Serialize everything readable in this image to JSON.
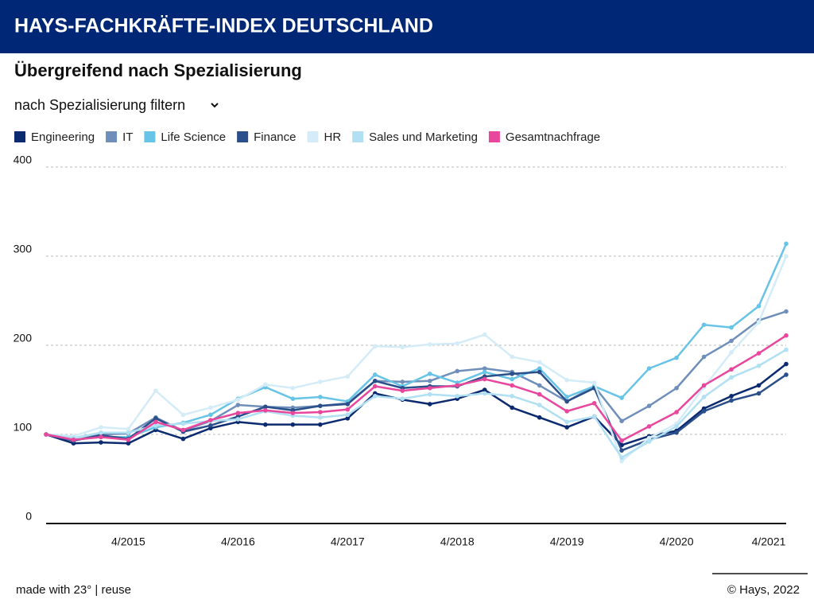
{
  "header": {
    "title": "HAYS-FACHKRÄFTE-INDEX DEUTSCHLAND"
  },
  "subtitle": "Übergreifend nach Spezialisierung",
  "filter_label": "nach Spezialisierung filtern",
  "footer": {
    "left": "made with 23° | reuse",
    "right": "© Hays, 2022"
  },
  "chart_data": {
    "type": "line",
    "categories": [
      null,
      null,
      null,
      "4/2015",
      null,
      null,
      null,
      "4/2016",
      null,
      null,
      null,
      "4/2017",
      null,
      null,
      null,
      "4/2018",
      null,
      null,
      null,
      "4/2019",
      null,
      null,
      null,
      "4/2020",
      null,
      null,
      null,
      "4/2021"
    ],
    "series": [
      {
        "name": "Engineering",
        "color": "#0b2a6f",
        "values": [
          100,
          90,
          91,
          90,
          105,
          95,
          107,
          114,
          111,
          111,
          111,
          118,
          146,
          139,
          134,
          140,
          150,
          130,
          119,
          108,
          120,
          88,
          98,
          104,
          129,
          143,
          155,
          179
        ]
      },
      {
        "name": "IT",
        "color": "#6f8fba",
        "values": [
          100,
          93,
          100,
          101,
          119,
          104,
          115,
          133,
          131,
          130,
          132,
          135,
          160,
          159,
          160,
          171,
          174,
          170,
          155,
          137,
          154,
          115,
          132,
          152,
          187,
          205,
          228,
          238
        ]
      },
      {
        "name": "Life Science",
        "color": "#68c4e6",
        "values": [
          100,
          94,
          97,
          97,
          108,
          113,
          122,
          140,
          153,
          140,
          142,
          137,
          167,
          154,
          168,
          158,
          170,
          162,
          174,
          142,
          154,
          141,
          174,
          186,
          223,
          220,
          244,
          314
        ]
      },
      {
        "name": "Finance",
        "color": "#2a4f8a",
        "values": [
          100,
          93,
          99,
          95,
          118,
          103,
          110,
          120,
          131,
          127,
          132,
          134,
          160,
          152,
          154,
          154,
          165,
          168,
          170,
          137,
          152,
          82,
          94,
          102,
          126,
          138,
          146,
          167
        ]
      },
      {
        "name": "HR",
        "color": "#d3ecf7",
        "values": [
          100,
          98,
          108,
          106,
          149,
          122,
          130,
          139,
          156,
          152,
          159,
          165,
          199,
          198,
          201,
          202,
          212,
          187,
          181,
          161,
          158,
          70,
          96,
          112,
          153,
          192,
          226,
          300
        ]
      },
      {
        "name": "Sales und Marketing",
        "color": "#b1e0f2",
        "values": [
          100,
          96,
          102,
          102,
          110,
          112,
          115,
          117,
          126,
          121,
          119,
          122,
          143,
          140,
          145,
          143,
          146,
          143,
          133,
          114,
          120,
          74,
          92,
          109,
          142,
          164,
          177,
          195
        ]
      },
      {
        "name": "Gesamtnachfrage",
        "color": "#e8479d",
        "values": [
          100,
          94,
          97,
          94,
          114,
          105,
          116,
          124,
          127,
          124,
          125,
          128,
          154,
          149,
          152,
          155,
          162,
          155,
          145,
          126,
          135,
          93,
          109,
          125,
          155,
          173,
          191,
          211
        ]
      }
    ],
    "ylim": [
      0,
      400
    ],
    "yticks": [
      0,
      100,
      200,
      300,
      400
    ],
    "grid": true
  }
}
